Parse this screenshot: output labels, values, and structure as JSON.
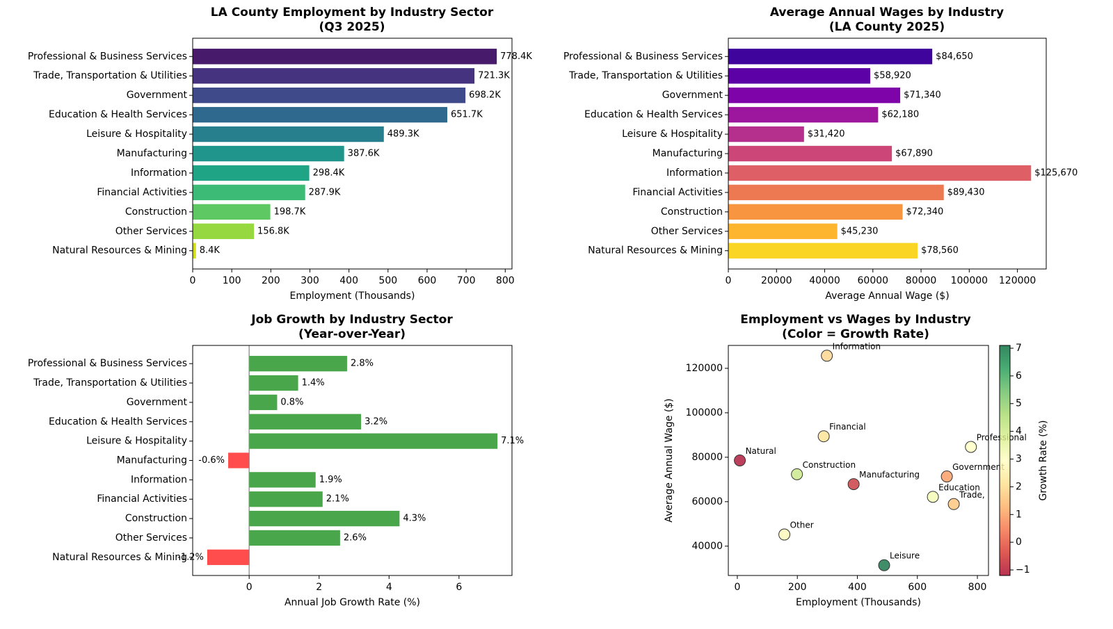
{
  "chart_data": [
    {
      "type": "barh",
      "title": "LA County Employment by Industry Sector\n(Q3 2025)",
      "xlabel": "Employment (Thousands)",
      "categories": [
        "Professional & Business Services",
        "Trade, Transportation & Utilities",
        "Government",
        "Education & Health Services",
        "Leisure & Hospitality",
        "Manufacturing",
        "Information",
        "Financial Activities",
        "Construction",
        "Other Services",
        "Natural Resources & Mining"
      ],
      "values": [
        778.4,
        721.3,
        698.2,
        651.7,
        489.3,
        387.6,
        298.4,
        287.9,
        198.7,
        156.8,
        8.4
      ],
      "value_labels": [
        "778.4K",
        "721.3K",
        "698.2K",
        "651.7K",
        "489.3K",
        "387.6K",
        "298.4K",
        "287.9K",
        "198.7K",
        "156.8K",
        "8.4K"
      ],
      "colors": [
        "#481a6c",
        "#46337f",
        "#3f4a8a",
        "#30698e",
        "#277f8e",
        "#1f958b",
        "#20a486",
        "#3bbb75",
        "#5ec962",
        "#95d840",
        "#d0e11c"
      ],
      "xlim": [
        0,
        817.3
      ],
      "xticks": [
        0,
        100,
        200,
        300,
        400,
        500,
        600,
        700,
        800
      ]
    },
    {
      "type": "barh",
      "title": "Average Annual Wages by Industry\n(LA County 2025)",
      "xlabel": "Average Annual Wage ($)",
      "categories": [
        "Professional & Business Services",
        "Trade, Transportation & Utilities",
        "Government",
        "Education & Health Services",
        "Leisure & Hospitality",
        "Manufacturing",
        "Information",
        "Financial Activities",
        "Construction",
        "Other Services",
        "Natural Resources & Mining"
      ],
      "values": [
        84650,
        58920,
        71340,
        62180,
        31420,
        67890,
        125670,
        89430,
        72340,
        45230,
        78560
      ],
      "value_labels": [
        "$84,650",
        "$58,920",
        "$71,340",
        "$62,180",
        "$31,420",
        "$67,890",
        "$125,670",
        "$89,430",
        "$72,340",
        "$45,230",
        "$78,560"
      ],
      "colors": [
        "#3e049c",
        "#5c01a6",
        "#7e03a8",
        "#9c179e",
        "#b52f8c",
        "#cc4778",
        "#de5f65",
        "#ed7953",
        "#f89540",
        "#fdb42f",
        "#fbd524"
      ],
      "xlim": [
        0,
        131953
      ],
      "xticks": [
        0,
        20000,
        40000,
        60000,
        80000,
        100000,
        120000
      ]
    },
    {
      "type": "barh",
      "title": "Job Growth by Industry Sector\n(Year-over-Year)",
      "xlabel": "Annual Job Growth Rate (%)",
      "categories": [
        "Professional & Business Services",
        "Trade, Transportation & Utilities",
        "Government",
        "Education & Health Services",
        "Leisure & Hospitality",
        "Manufacturing",
        "Information",
        "Financial Activities",
        "Construction",
        "Other Services",
        "Natural Resources & Mining"
      ],
      "values": [
        2.8,
        1.4,
        0.8,
        3.2,
        7.1,
        -0.6,
        1.9,
        2.1,
        4.3,
        2.6,
        -1.2
      ],
      "value_labels": [
        "2.8%",
        "1.4%",
        "0.8%",
        "3.2%",
        "7.1%",
        "-0.6%",
        "1.9%",
        "2.1%",
        "4.3%",
        "2.6%",
        "-1.2%"
      ],
      "colors": [
        "#4aa64a",
        "#4aa64a",
        "#4aa64a",
        "#4aa64a",
        "#4aa64a",
        "#ff4d4d",
        "#4aa64a",
        "#4aa64a",
        "#4aa64a",
        "#4aa64a",
        "#ff4d4d"
      ],
      "xlim": [
        -1.615,
        7.515
      ],
      "xticks": [
        0,
        2,
        4,
        6
      ]
    },
    {
      "type": "scatter",
      "title": "Employment vs Wages by Industry\n(Color = Growth Rate)",
      "xlabel": "Employment (Thousands)",
      "ylabel": "Average Annual Wage ($)",
      "labels": [
        "Professional",
        "Trade,",
        "Government",
        "Education",
        "Leisure",
        "Manufacturing",
        "Information",
        "Financial",
        "Construction",
        "Other",
        "Natural"
      ],
      "x": [
        778.4,
        721.3,
        698.2,
        651.7,
        489.3,
        387.6,
        298.4,
        287.9,
        198.7,
        156.8,
        8.4
      ],
      "y": [
        84650,
        58920,
        71340,
        62180,
        31420,
        67890,
        125670,
        89430,
        72340,
        45230,
        78560
      ],
      "color_values": [
        2.8,
        1.4,
        0.8,
        3.2,
        7.1,
        -0.6,
        1.9,
        2.1,
        4.3,
        2.6,
        -1.2
      ],
      "colors": [
        "#fefebd",
        "#fdbf6f",
        "#f99153",
        "#f3faad",
        "#006837",
        "#c1272d",
        "#fed081",
        "#fee08b",
        "#c5e67e",
        "#fff7b3",
        "#a50026"
      ],
      "xlim": [
        -30,
        837
      ],
      "xticks": [
        0,
        200,
        400,
        600,
        800
      ],
      "ylim": [
        26800,
        130300
      ],
      "yticks": [
        40000,
        60000,
        80000,
        100000,
        120000
      ],
      "colorbar": {
        "label": "Growth Rate (%)",
        "lim": [
          -1.2,
          7.1
        ],
        "ticks": [
          {
            "value": -1,
            "label": "−1"
          },
          0,
          1,
          2,
          3,
          4,
          5,
          6,
          7
        ],
        "colors": [
          "#a50026",
          "#d73027",
          "#f46d43",
          "#fdae61",
          "#fee08b",
          "#ffffbf",
          "#d9ef8b",
          "#a6d96a",
          "#66bd63",
          "#1a9850",
          "#006837"
        ]
      }
    }
  ]
}
